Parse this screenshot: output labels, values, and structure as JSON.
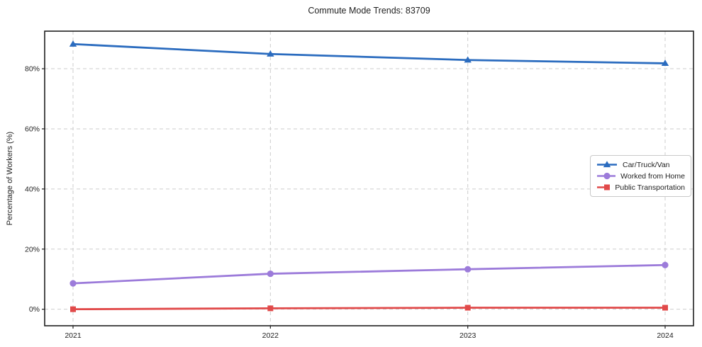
{
  "chart_data": {
    "type": "line",
    "title": "Commute Mode Trends: 83709",
    "xlabel": "",
    "ylabel": "Percentage of Workers (%)",
    "categories": [
      "2021",
      "2022",
      "2023",
      "2024"
    ],
    "series": [
      {
        "name": "Car/Truck/Van",
        "color": "#2b6cbf",
        "marker": "triangle",
        "values": [
          88.2,
          84.9,
          82.9,
          81.8
        ]
      },
      {
        "name": "Worked from Home",
        "color": "#9c7bda",
        "marker": "circle",
        "values": [
          8.6,
          11.8,
          13.3,
          14.7
        ]
      },
      {
        "name": "Public Transportation",
        "color": "#e14a4a",
        "marker": "square",
        "values": [
          0.0,
          0.3,
          0.5,
          0.5
        ]
      }
    ],
    "yticks": [
      0,
      20,
      40,
      60,
      80
    ],
    "ytick_labels": [
      "0%",
      "20%",
      "40%",
      "60%",
      "80%"
    ],
    "ylim": [
      -5.5,
      92.5
    ],
    "grid": true,
    "grid_style": "dashed",
    "legend_position": "center-right",
    "colors": {
      "axis": "#1f1f1f",
      "grid": "#cdcdcd",
      "text": "#1f1f1f",
      "background": "#ffffff"
    }
  }
}
